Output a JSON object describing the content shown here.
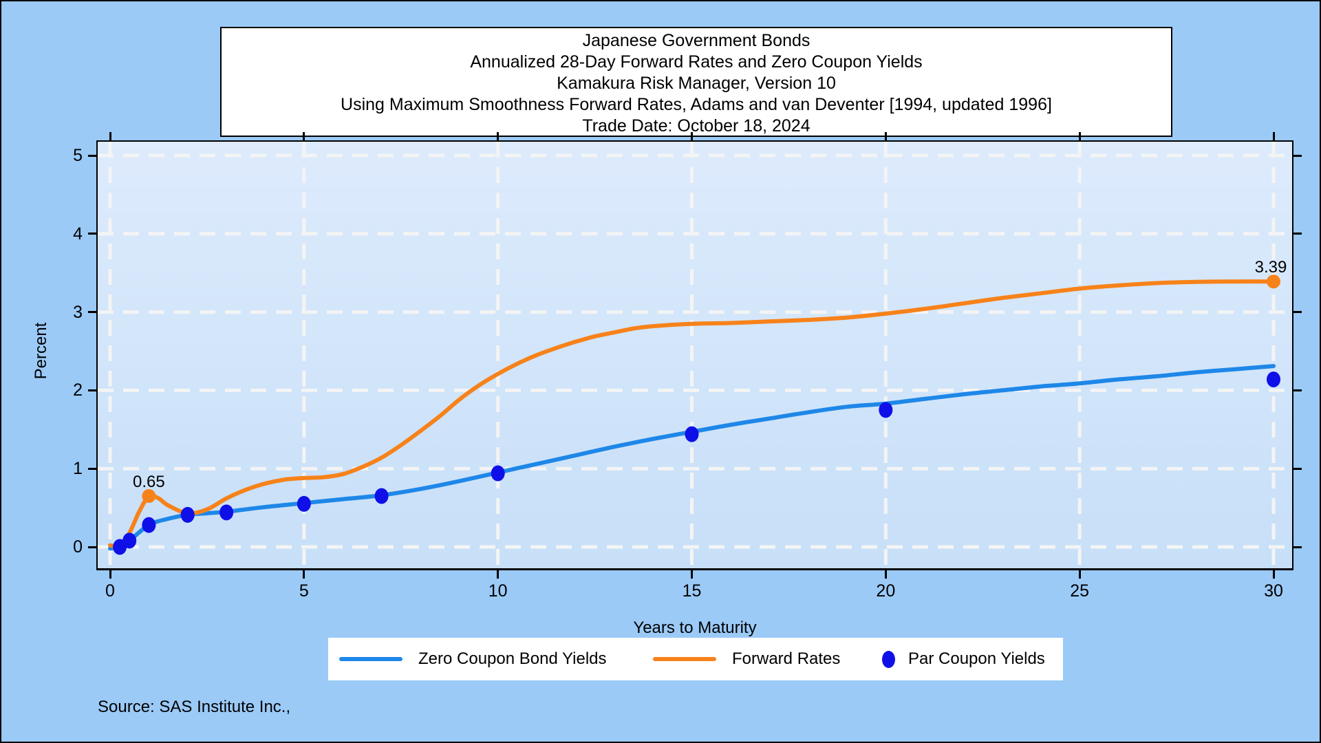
{
  "source_note": "Source: SAS Institute Inc.,",
  "colors": {
    "outer_bg": "#9BCAF7",
    "plot_bg_top": "#DDEBFC",
    "plot_bg_bottom": "#C7DFF8",
    "gridline": "#F4F4F4",
    "frame": "#000000",
    "text": "#000000",
    "title_bg": "#FFFFFF",
    "legend_bg": "#FFFFFF"
  },
  "chart_data": {
    "type": "line",
    "title_lines": [
      "Japanese Government Bonds",
      "Annualized 28-Day Forward Rates and Zero Coupon Yields",
      "Kamakura Risk Manager, Version 10",
      "Using Maximum Smoothness Forward Rates, Adams and van Deventer [1994, updated 1996]",
      "Trade Date: October 18, 2024"
    ],
    "xlabel": "Years to Maturity",
    "ylabel": "Percent",
    "xlim": [
      0,
      30
    ],
    "ylim": [
      0,
      5
    ],
    "xticks": [
      0,
      5,
      10,
      15,
      20,
      25,
      30
    ],
    "yticks": [
      0,
      1,
      2,
      3,
      4,
      5
    ],
    "grid": {
      "style": "dashed",
      "color": "#F4F4F4",
      "axes": "both"
    },
    "legend_position": "bottom-center",
    "series": [
      {
        "name": "Zero Coupon Bond Yields",
        "type": "line",
        "color": "#1E87E8",
        "x": [
          0,
          0.25,
          0.5,
          1,
          1.5,
          2,
          2.5,
          3,
          4,
          5,
          6,
          7,
          8,
          9,
          10,
          11,
          12,
          13,
          14,
          15,
          16,
          17,
          18,
          19,
          20,
          21,
          22,
          23,
          24,
          25,
          26,
          27,
          28,
          29,
          30
        ],
        "y": [
          -0.02,
          0.0,
          0.08,
          0.28,
          0.36,
          0.41,
          0.43,
          0.45,
          0.51,
          0.56,
          0.61,
          0.66,
          0.74,
          0.84,
          0.95,
          1.06,
          1.17,
          1.28,
          1.38,
          1.47,
          1.56,
          1.64,
          1.72,
          1.79,
          1.83,
          1.89,
          1.95,
          2.0,
          2.05,
          2.09,
          2.14,
          2.18,
          2.23,
          2.27,
          2.31
        ]
      },
      {
        "name": "Forward Rates",
        "type": "line",
        "color": "#F7821A",
        "x": [
          0,
          0.25,
          0.5,
          0.75,
          1,
          1.25,
          1.5,
          2,
          2.5,
          3,
          3.5,
          4,
          4.5,
          5,
          5.5,
          6,
          6.5,
          7,
          7.5,
          8,
          8.5,
          9,
          9.5,
          10,
          10.5,
          11,
          11.5,
          12,
          12.5,
          13,
          13.5,
          14,
          15,
          16,
          17,
          18,
          19,
          20,
          21,
          22,
          23,
          24,
          25,
          26,
          27,
          28,
          29,
          30
        ],
        "y": [
          0.02,
          0.02,
          0.18,
          0.45,
          0.65,
          0.62,
          0.53,
          0.43,
          0.48,
          0.62,
          0.73,
          0.81,
          0.86,
          0.88,
          0.89,
          0.93,
          1.02,
          1.14,
          1.3,
          1.48,
          1.67,
          1.88,
          2.06,
          2.21,
          2.34,
          2.45,
          2.54,
          2.62,
          2.69,
          2.74,
          2.79,
          2.82,
          2.85,
          2.86,
          2.88,
          2.9,
          2.93,
          2.98,
          3.04,
          3.11,
          3.18,
          3.24,
          3.3,
          3.34,
          3.37,
          3.385,
          3.39,
          3.39
        ],
        "point_labels": [
          {
            "x": 1,
            "y": 0.65,
            "text": "0.65"
          },
          {
            "x": 30,
            "y": 3.39,
            "text": "3.39"
          }
        ]
      },
      {
        "name": "Par Coupon Yields",
        "type": "scatter",
        "color": "#0F0FE8",
        "x": [
          0.25,
          0.5,
          1,
          2,
          3,
          5,
          7,
          10,
          15,
          20,
          30
        ],
        "y": [
          0.0,
          0.08,
          0.28,
          0.41,
          0.44,
          0.55,
          0.65,
          0.94,
          1.44,
          1.75,
          2.14
        ]
      }
    ]
  },
  "legend": {
    "items": [
      {
        "series": 0,
        "swatch": "line"
      },
      {
        "series": 1,
        "swatch": "line"
      },
      {
        "series": 2,
        "swatch": "dot"
      }
    ]
  }
}
